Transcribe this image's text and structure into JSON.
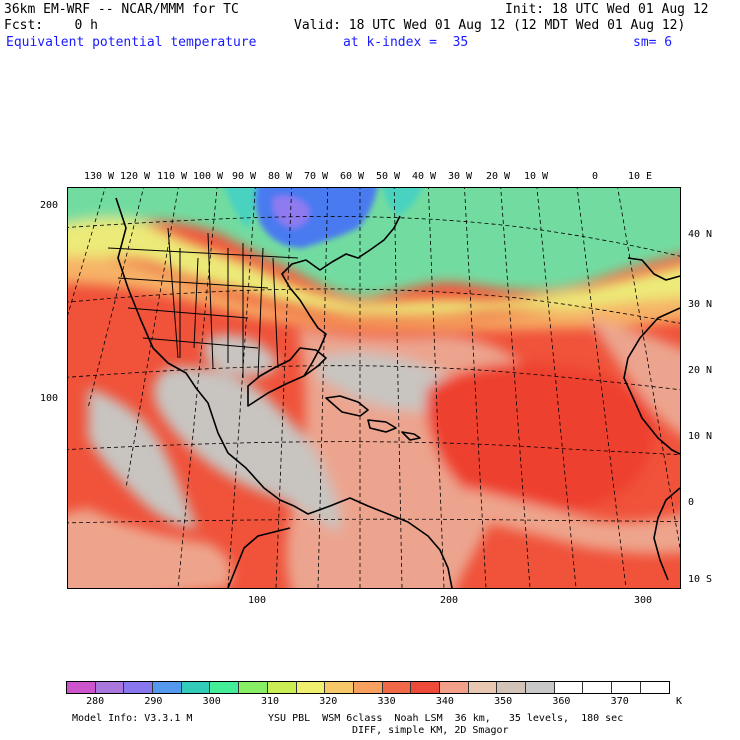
{
  "header": {
    "model_title": "36km EM-WRF -- NCAR/MMM for TC",
    "init": "Init: 18 UTC Wed 01 Aug 12",
    "fcst": "Fcst:    0 h",
    "valid": "Valid: 18 UTC Wed 01 Aug 12 (12 MDT Wed 01 Aug 12)",
    "field": "Equivalent potential temperature",
    "level": "at k-index =  35",
    "smoothing": "sm= 6"
  },
  "colors": {
    "title_blue": "#1a1aff",
    "map_base_red": "#f0523a",
    "map_pale_red": "#eea48c",
    "map_gray": "#c8c2bc",
    "map_green": "#78e08c",
    "map_yellow": "#f0f07a",
    "map_blue": "#4a7cf0"
  },
  "map": {
    "lon_labels": [
      "130 W",
      "120 W",
      "110 W",
      "100 W",
      "90 W",
      "80 W",
      "70 W",
      "60 W",
      "50 W",
      "40 W",
      "30 W",
      "20 W",
      "10 W",
      "0",
      "10 E"
    ],
    "lat_labels": [
      "40 N",
      "30 N",
      "20 N",
      "10 N",
      "0",
      "10 S"
    ],
    "grid_y_ticks": [
      "200",
      "100"
    ],
    "grid_x_ticks": [
      "100",
      "200",
      "300"
    ]
  },
  "colorbar": {
    "colors": [
      "#cc55cc",
      "#aa77dd",
      "#8877ee",
      "#5599ee",
      "#33ccbb",
      "#44ee99",
      "#88ee66",
      "#ccee55",
      "#f0f070",
      "#f7c86a",
      "#f7a060",
      "#f06848",
      "#ee4a3a",
      "#f3a08a",
      "#e8c8b0",
      "#d2c2b8",
      "#c8c8c8",
      "#ffffff",
      "#ffffff",
      "#ffffff",
      "#ffffff"
    ],
    "labels": [
      "280",
      "290",
      "300",
      "310",
      "320",
      "330",
      "340",
      "350",
      "360",
      "370"
    ],
    "units": "K"
  },
  "footer": {
    "model_info": "Model Info: V3.3.1 M",
    "physics": "YSU PBL  WSM 6class  Noah LSM  36 km,   35 levels,  180 sec",
    "diff": "DIFF, simple KM, 2D Smagor"
  }
}
